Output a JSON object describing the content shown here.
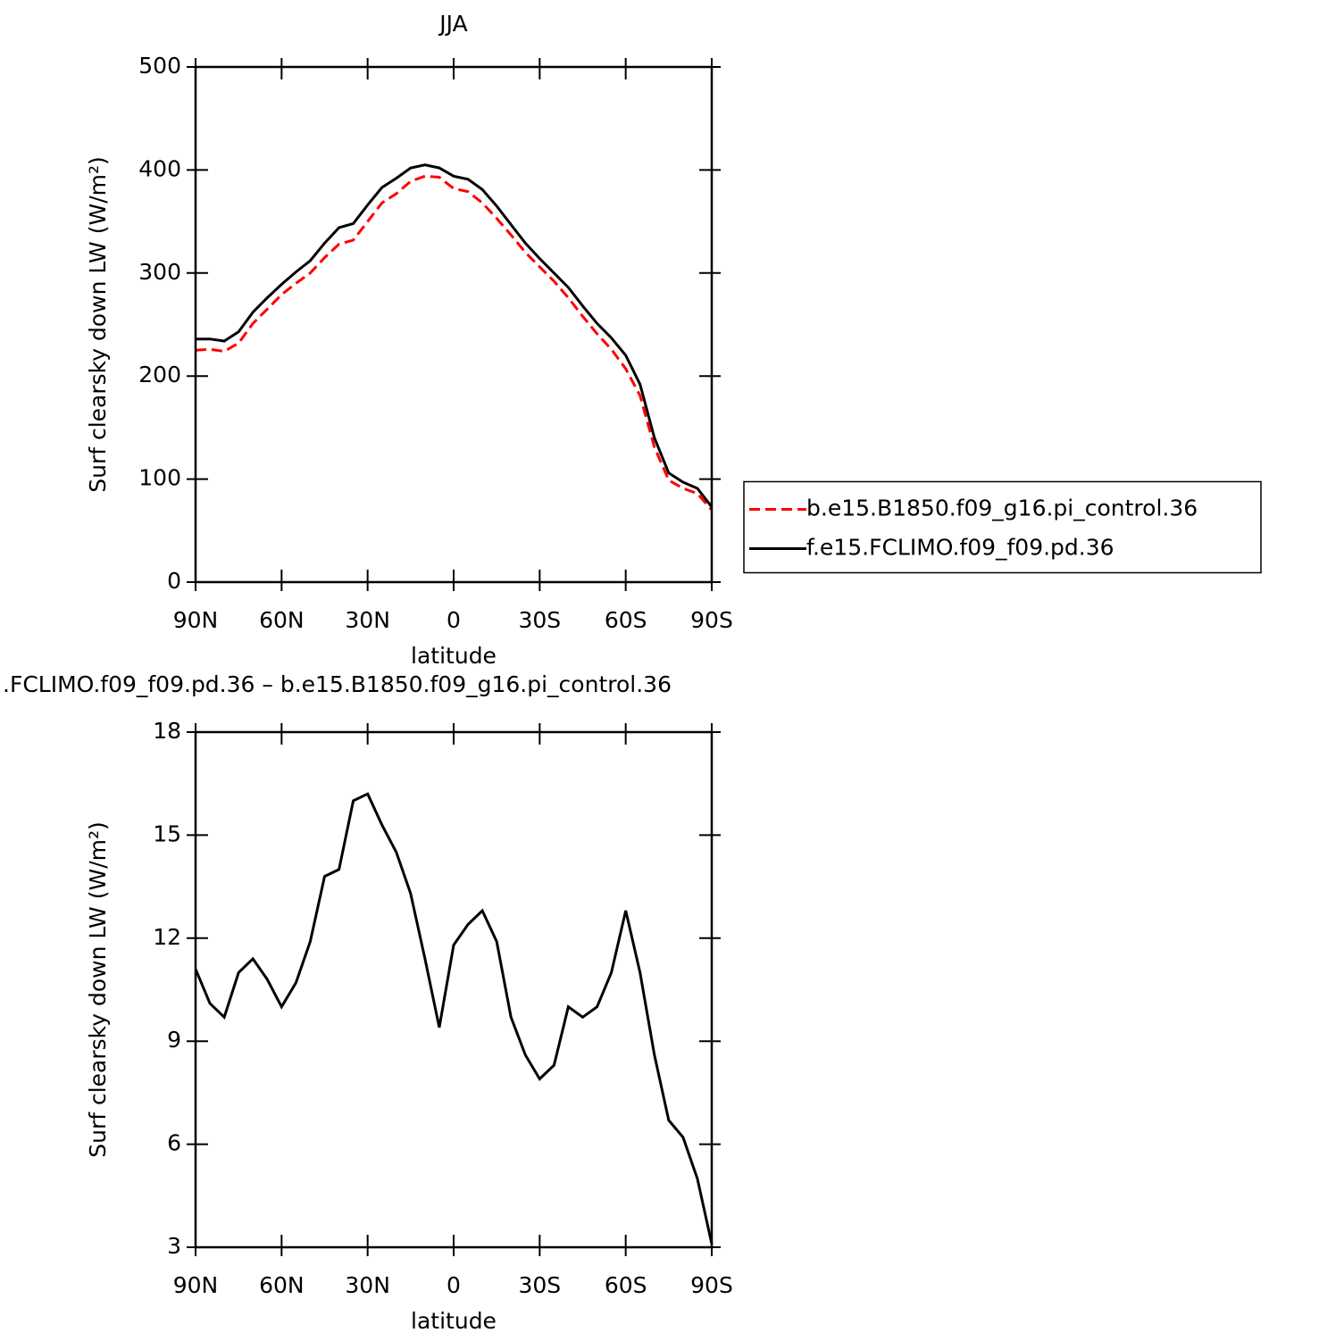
{
  "chart_data": [
    {
      "type": "line",
      "title": "JJA",
      "xlabel": "latitude",
      "ylabel": "Surf clearsky down LW (W/m²)",
      "x": [
        90,
        85,
        80,
        75,
        70,
        65,
        60,
        55,
        50,
        45,
        40,
        35,
        30,
        25,
        20,
        15,
        10,
        5,
        0,
        -5,
        -10,
        -15,
        -20,
        -25,
        -30,
        -35,
        -40,
        -45,
        -50,
        -55,
        -60,
        -65,
        -70,
        -75,
        -80,
        -85,
        -90
      ],
      "series": [
        {
          "name": "b.e15.B1850.f09_g16.pi_control.36",
          "color": "#ff0000",
          "linestyle": "dashed",
          "values": [
            225,
            226,
            224,
            232,
            251,
            265,
            279,
            290,
            300,
            315,
            328,
            332,
            350,
            368,
            377,
            389,
            394,
            393,
            382,
            379,
            368,
            353,
            337,
            320,
            306,
            292,
            276,
            258,
            241,
            226,
            207,
            181,
            131,
            99,
            91,
            86,
            70
          ]
        },
        {
          "name": "f.e15.FCLIMO.f09_f09.pd.36",
          "color": "#000000",
          "linestyle": "solid",
          "values": [
            236,
            236,
            234,
            243,
            262,
            276,
            289,
            301,
            312,
            329,
            344,
            348,
            366,
            383,
            392,
            402,
            405,
            402,
            394,
            391,
            381,
            365,
            347,
            329,
            314,
            300,
            286,
            268,
            251,
            237,
            220,
            192,
            140,
            106,
            97,
            91,
            73
          ]
        }
      ],
      "xlim": [
        90,
        -90
      ],
      "xticks": [
        {
          "value": 90,
          "label": "90N"
        },
        {
          "value": 60,
          "label": "60N"
        },
        {
          "value": 30,
          "label": "30N"
        },
        0,
        {
          "value": -30,
          "label": "30S"
        },
        {
          "value": -60,
          "label": "60S"
        },
        {
          "value": -90,
          "label": "90S"
        }
      ],
      "ylim": [
        0,
        500
      ],
      "yticks": [
        0,
        100,
        200,
        300,
        400,
        500
      ],
      "legend": "right"
    },
    {
      "type": "line",
      "title": ".FCLIMO.f09_f09.pd.36 – b.e15.B1850.f09_g16.pi_control.36",
      "xlabel": "latitude",
      "ylabel": "Surf clearsky down LW (W/m²)",
      "x": [
        90,
        85,
        80,
        75,
        70,
        65,
        60,
        55,
        50,
        45,
        40,
        35,
        30,
        25,
        20,
        15,
        10,
        5,
        0,
        -5,
        -10,
        -15,
        -20,
        -25,
        -30,
        -35,
        -40,
        -45,
        -50,
        -55,
        -60,
        -65,
        -70,
        -75,
        -80,
        -85,
        -90
      ],
      "series": [
        {
          "color": "#000000",
          "linestyle": "solid",
          "values": [
            11.1,
            10.1,
            9.7,
            11.0,
            11.4,
            10.8,
            10.0,
            10.7,
            11.9,
            13.8,
            14.0,
            16.0,
            16.2,
            15.3,
            14.5,
            13.3,
            11.4,
            9.4,
            11.8,
            12.4,
            12.8,
            11.9,
            9.7,
            8.6,
            7.9,
            8.3,
            10.0,
            9.7,
            10.0,
            11.0,
            12.8,
            11.0,
            8.6,
            6.7,
            6.2,
            5.0,
            3.1
          ]
        }
      ],
      "xlim": [
        90,
        -90
      ],
      "xticks": [
        {
          "value": 90,
          "label": "90N"
        },
        {
          "value": 60,
          "label": "60N"
        },
        {
          "value": 30,
          "label": "30N"
        },
        0,
        {
          "value": -30,
          "label": "30S"
        },
        {
          "value": -60,
          "label": "60S"
        },
        {
          "value": -90,
          "label": "90S"
        }
      ],
      "ylim": [
        3,
        18
      ],
      "yticks": [
        3,
        6,
        9,
        12,
        15,
        18
      ]
    }
  ]
}
